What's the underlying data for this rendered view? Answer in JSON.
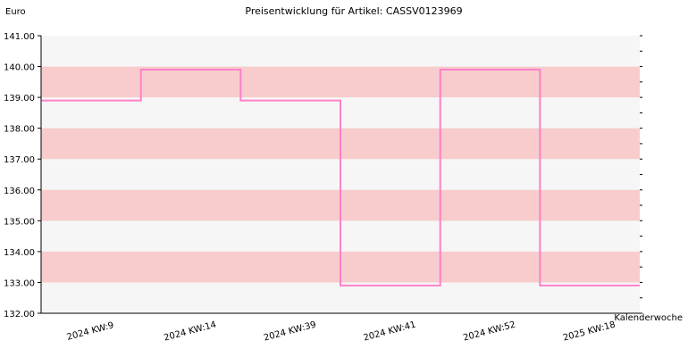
{
  "chart_data": {
    "type": "line",
    "step": "post",
    "title": "Preisentwicklung für Artikel: CASSV0123969",
    "ylabel": "Euro",
    "xlabel": "Kalenderwoche",
    "ylim": [
      132.0,
      141.0
    ],
    "ytick_values": [
      132.0,
      133.0,
      134.0,
      135.0,
      136.0,
      137.0,
      138.0,
      139.0,
      140.0,
      141.0
    ],
    "ytick_labels": [
      "132.00",
      "133.00",
      "134.00",
      "135.00",
      "136.00",
      "137.00",
      "138.00",
      "139.00",
      "140.00",
      "141.00"
    ],
    "categories": [
      "2024 KW:9",
      "2024 KW:14",
      "2024 KW:39",
      "2024 KW:41",
      "2024 KW:52",
      "2025 KW:18"
    ],
    "series": [
      {
        "values": [
          138.9,
          139.9,
          138.9,
          132.9,
          139.9,
          132.9
        ]
      }
    ],
    "grid": true,
    "colors": {
      "line": "#ff80c8",
      "band_alt": "#f8cccc",
      "band_base": "#f6f6f6",
      "axis": "#000000"
    }
  }
}
